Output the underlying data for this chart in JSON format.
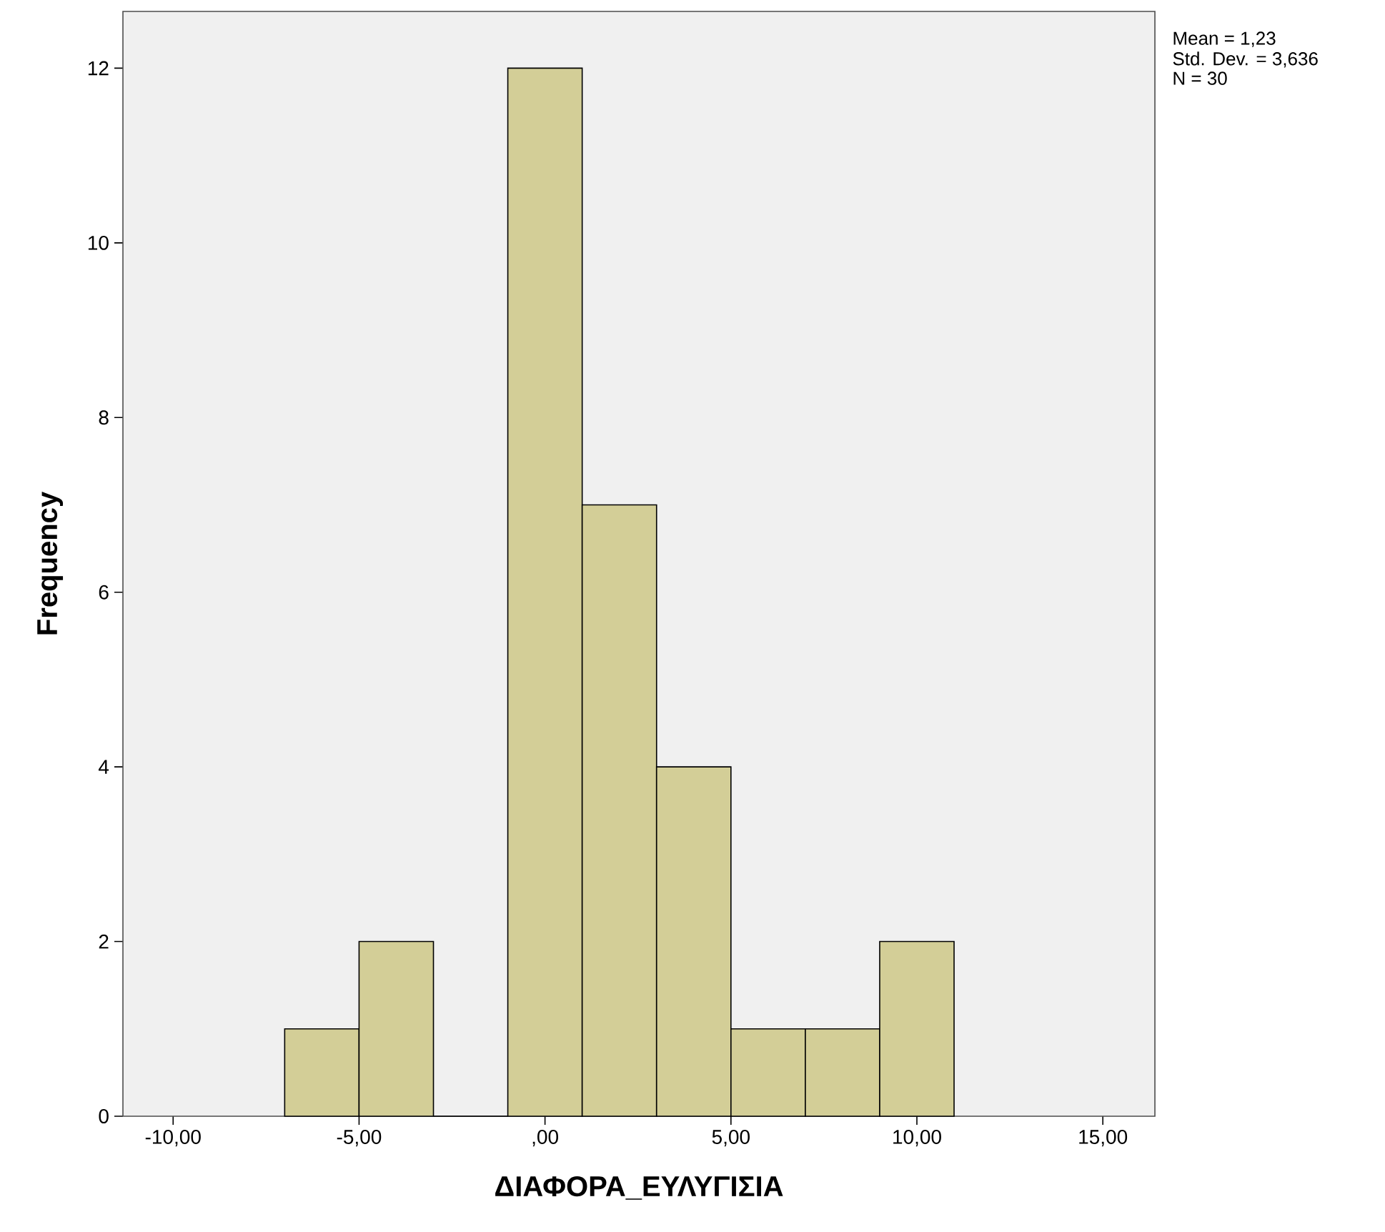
{
  "chart_data": {
    "type": "histogram",
    "xlabel": "ΔΙΑΦΟΡΑ_ΕΥΛΥΓΙΣΙΑ",
    "ylabel": "Frequency",
    "bins": [
      -7,
      -5,
      -3,
      -1,
      1,
      3,
      5,
      7,
      9,
      11
    ],
    "values": [
      1,
      2,
      0,
      12,
      7,
      4,
      1,
      1,
      2
    ],
    "color": "#d3ce97",
    "xlim": [
      -11.35,
      16.4
    ],
    "xticks": [
      {
        "value": -10,
        "label": "-10,00"
      },
      {
        "value": -5,
        "label": "-5,00"
      },
      {
        "value": 0,
        "label": ",00"
      },
      {
        "value": 5,
        "label": "5,00"
      },
      {
        "value": 10,
        "label": "10,00"
      },
      {
        "value": 15,
        "label": "15,00"
      }
    ],
    "ylim": [
      0,
      12.65
    ],
    "yticks": [
      0,
      2,
      4,
      6,
      8,
      10,
      12
    ],
    "annotations": [
      "Mean = 1,23",
      "Std. Dev. = 3,636",
      "N = 30"
    ]
  }
}
